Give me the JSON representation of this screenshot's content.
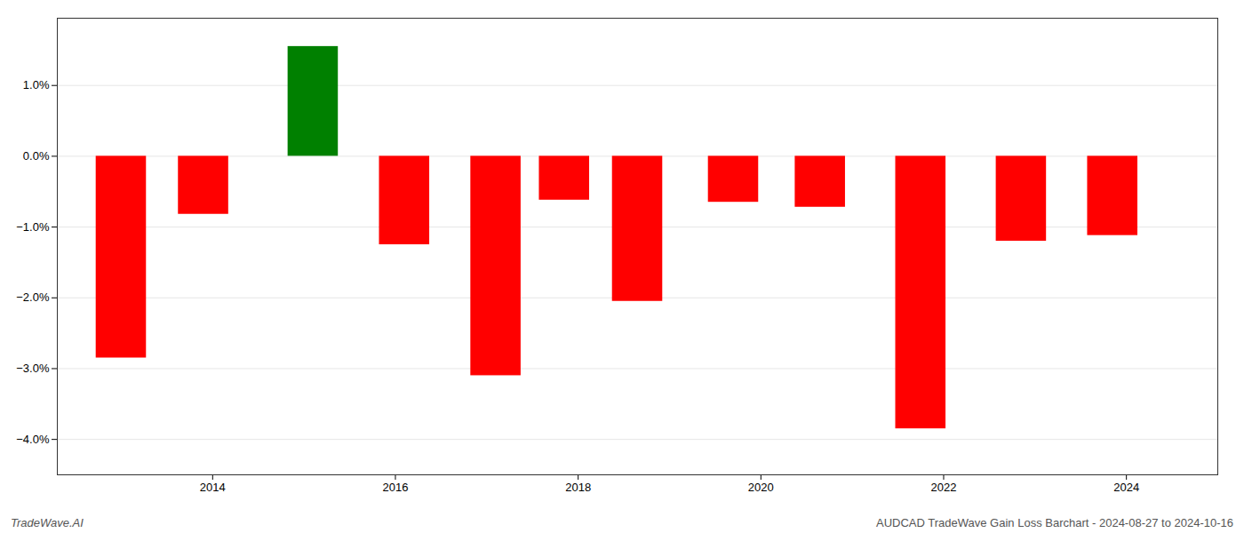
{
  "chart_data": {
    "type": "bar",
    "x": [
      2013,
      2013.9,
      2015.1,
      2016.1,
      2017.1,
      2017.85,
      2018.65,
      2019.7,
      2020.65,
      2021.75,
      2022.85,
      2023.85
    ],
    "values": [
      -2.85,
      -0.82,
      1.55,
      -1.25,
      -3.1,
      -0.62,
      -2.05,
      -0.65,
      -0.72,
      -3.85,
      -1.2,
      -1.12
    ],
    "colors": [
      "#ff0000",
      "#ff0000",
      "#008000",
      "#ff0000",
      "#ff0000",
      "#ff0000",
      "#ff0000",
      "#ff0000",
      "#ff0000",
      "#ff0000",
      "#ff0000",
      "#ff0000"
    ],
    "xlim": [
      2012.3,
      2025.0
    ],
    "xticks": [
      2014,
      2016,
      2018,
      2020,
      2022,
      2024
    ],
    "ylim": [
      -4.5,
      1.95
    ],
    "yticks": [
      {
        "value": -4.0,
        "label": "−4.0%"
      },
      {
        "value": -3.0,
        "label": "−3.0%"
      },
      {
        "value": -2.0,
        "label": "−2.0%"
      },
      {
        "value": -1.0,
        "label": "−1.0%"
      },
      {
        "value": 0.0,
        "label": "0.0%"
      },
      {
        "value": 1.0,
        "label": "1.0%"
      }
    ],
    "grid": true,
    "annotations": [
      "TradeWave.AI",
      "AUDCAD TradeWave Gain Loss Barchart - 2024-08-27 to 2024-10-16"
    ]
  }
}
